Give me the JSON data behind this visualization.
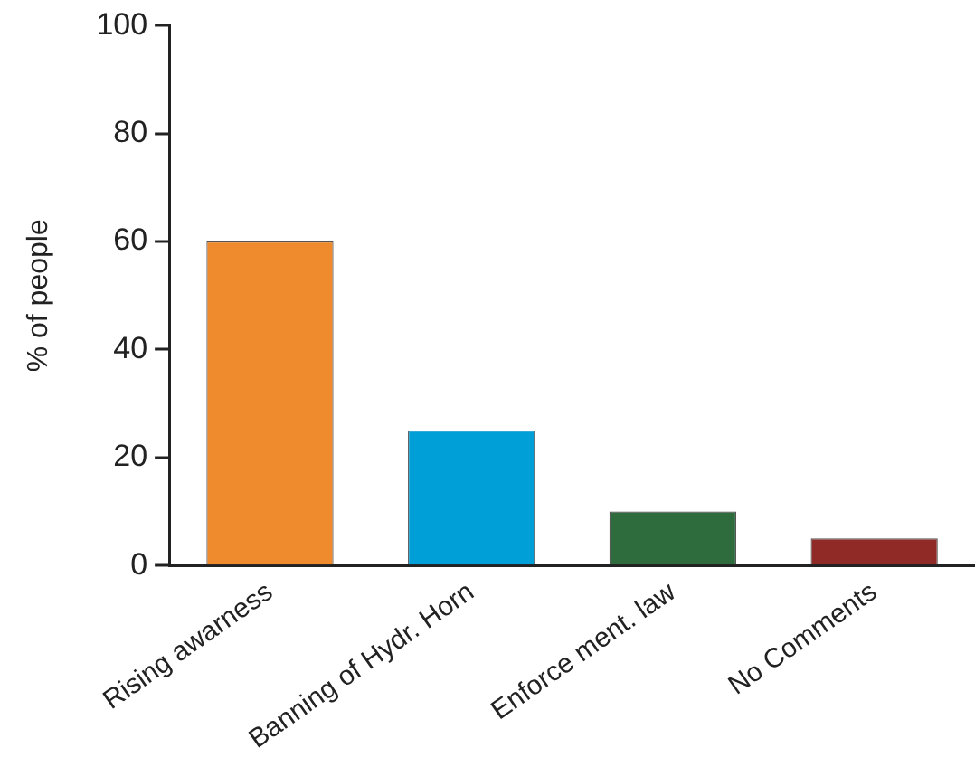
{
  "chart_data": {
    "type": "bar",
    "ylabel": "% of people",
    "categories": [
      "Rising awarness",
      "Banning of Hydr. Horn",
      "Enforce ment. law",
      "No Comments"
    ],
    "values": [
      60,
      25,
      10,
      5
    ],
    "colors": [
      "#ef8a2d",
      "#009fd8",
      "#2e6b3d",
      "#8f2a26"
    ],
    "ylim": [
      0,
      100
    ],
    "yticks": [
      0,
      20,
      40,
      60,
      80,
      100
    ],
    "grid": false,
    "legend": false
  }
}
